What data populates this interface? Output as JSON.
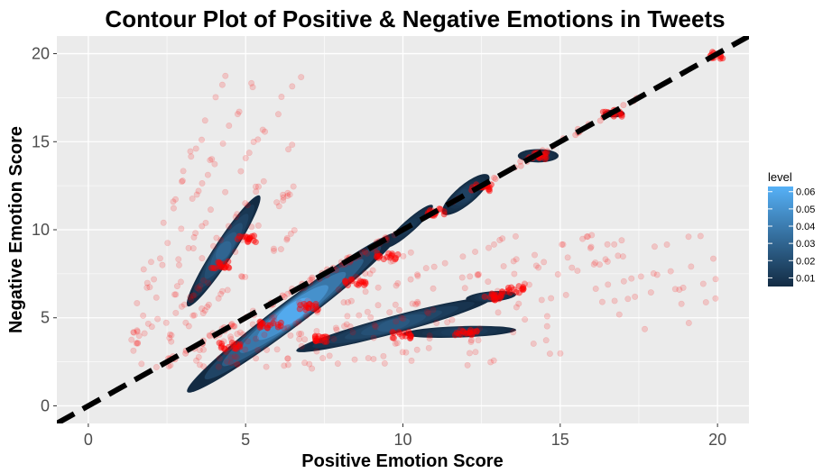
{
  "chart_data": {
    "type": "scatter",
    "title": "Contour Plot of Positive & Negative Emotions in Tweets",
    "xlabel": "Positive Emotion Score",
    "ylabel": "Negative Emotion Score",
    "xlim": [
      -1.0,
      21.0
    ],
    "ylim": [
      -1.0,
      21.0
    ],
    "x_ticks": [
      0,
      5,
      10,
      15,
      20
    ],
    "y_ticks": [
      0,
      5,
      10,
      15,
      20
    ],
    "grid": true,
    "panel_background": "#ebebeb",
    "point_color": "#ff0000",
    "reference_line": {
      "style": "dashed",
      "color": "#000000",
      "slope": 1,
      "intercept": 0
    },
    "points": {
      "rays_x_over_y": [
        1.0,
        1.18,
        1.4,
        1.65,
        1.8,
        2.0,
        2.4,
        2.8,
        3.3,
        4.0,
        5.0
      ],
      "rays_y_over_x": [
        1.5,
        1.9,
        2.3,
        2.8,
        3.5,
        4.3
      ],
      "clusters": [
        [
          4.5,
          3.4
        ],
        [
          5.8,
          4.6
        ],
        [
          7.0,
          5.6
        ],
        [
          8.5,
          7.0
        ],
        [
          9.5,
          8.5
        ],
        [
          11.0,
          11.0
        ],
        [
          12.5,
          12.4
        ],
        [
          14.3,
          14.2
        ],
        [
          16.7,
          16.6
        ],
        [
          20.0,
          19.9
        ],
        [
          4.2,
          8.0
        ],
        [
          5.0,
          9.5
        ],
        [
          7.5,
          3.8
        ],
        [
          10.0,
          4.0
        ],
        [
          12.0,
          4.2
        ],
        [
          12.8,
          6.2
        ],
        [
          13.5,
          6.6
        ]
      ]
    },
    "density_blobs": [
      {
        "cx": 6.5,
        "cy": 5.3,
        "rx": 4.2,
        "ry": 0.75,
        "angle_deg": 37,
        "level": 0.06
      },
      {
        "cx": 4.3,
        "cy": 8.8,
        "rx": 2.1,
        "ry": 0.55,
        "angle_deg": 57,
        "level": 0.03
      },
      {
        "cx": 9.7,
        "cy": 4.6,
        "rx": 3.2,
        "ry": 0.5,
        "angle_deg": 15,
        "level": 0.025
      },
      {
        "cx": 11.8,
        "cy": 4.2,
        "rx": 1.8,
        "ry": 0.32,
        "angle_deg": 2,
        "level": 0.015
      },
      {
        "cx": 12.8,
        "cy": 6.2,
        "rx": 0.8,
        "ry": 0.3,
        "angle_deg": 5,
        "level": 0.015
      },
      {
        "cx": 12.0,
        "cy": 12.0,
        "rx": 0.95,
        "ry": 0.55,
        "angle_deg": 40,
        "level": 0.015
      },
      {
        "cx": 10.2,
        "cy": 10.2,
        "rx": 1.0,
        "ry": 0.35,
        "angle_deg": 42,
        "level": 0.012
      },
      {
        "cx": 14.3,
        "cy": 14.2,
        "rx": 0.65,
        "ry": 0.38,
        "angle_deg": 0,
        "level": 0.012
      },
      {
        "cx": 16.7,
        "cy": 16.6,
        "rx": 0.35,
        "ry": 0.22,
        "angle_deg": 0,
        "level": 0.01
      }
    ],
    "legend": {
      "title": "level",
      "placement": "right",
      "labels": [
        "0.06",
        "0.05",
        "0.04",
        "0.03",
        "0.02",
        "0.01"
      ],
      "values": [
        0.06,
        0.05,
        0.04,
        0.03,
        0.02,
        0.01
      ],
      "range": [
        0.005,
        0.063
      ],
      "low_color": "#132b43",
      "high_color": "#56b1f7"
    }
  }
}
